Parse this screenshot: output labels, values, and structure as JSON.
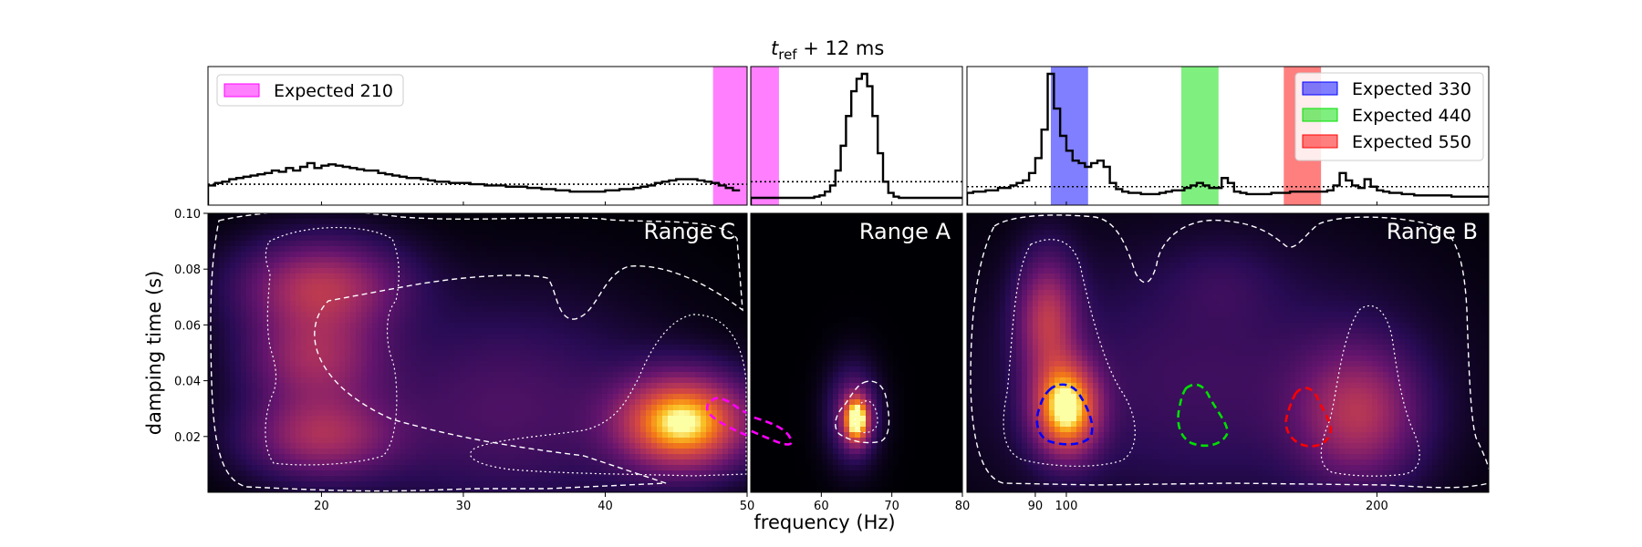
{
  "figure": {
    "title_main": "t",
    "title_sub": "ref",
    "title_rest": " + 12 ms",
    "xlabel": "frequency (Hz)",
    "ylabel": "damping time (s)"
  },
  "colors": {
    "magenta": "#ff00ff",
    "blue": "#0000ff",
    "green": "#00e000",
    "red": "#ff0000"
  },
  "chart_data": [
    {
      "panel": "Range C",
      "type": "histogram+density",
      "label": "Range C",
      "x_range": [
        12,
        50
      ],
      "y_range": [
        0.0,
        0.1
      ],
      "x_ticks": [
        20,
        30,
        40,
        50
      ],
      "x_tick_labels": [
        "20",
        "30",
        "40",
        "50"
      ],
      "y_ticks": [
        0.02,
        0.04,
        0.06,
        0.08,
        0.1
      ],
      "y_tick_labels": [
        "0.02",
        "0.04",
        "0.06",
        "0.08",
        "0.10"
      ],
      "legend": [
        {
          "label": "Expected 210",
          "color": "magenta"
        }
      ],
      "expected_bands": [
        {
          "name": "Expected 210",
          "x0": 47.6,
          "x1": 50,
          "color": "magenta"
        }
      ],
      "histogram": {
        "bin_start": 12,
        "bin_width": 0.5,
        "prior_level": 0.11,
        "max": 1.0,
        "counts": [
          0.1,
          0.12,
          0.13,
          0.15,
          0.16,
          0.17,
          0.18,
          0.19,
          0.2,
          0.22,
          0.21,
          0.24,
          0.22,
          0.25,
          0.28,
          0.24,
          0.26,
          0.27,
          0.26,
          0.25,
          0.24,
          0.23,
          0.22,
          0.22,
          0.2,
          0.19,
          0.18,
          0.17,
          0.16,
          0.16,
          0.15,
          0.14,
          0.13,
          0.13,
          0.12,
          0.12,
          0.12,
          0.11,
          0.11,
          0.1,
          0.1,
          0.1,
          0.09,
          0.09,
          0.09,
          0.08,
          0.08,
          0.07,
          0.07,
          0.06,
          0.06,
          0.05,
          0.05,
          0.05,
          0.05,
          0.05,
          0.06,
          0.06,
          0.07,
          0.07,
          0.08,
          0.09,
          0.1,
          0.12,
          0.13,
          0.14,
          0.15,
          0.15,
          0.15,
          0.14,
          0.13,
          0.12,
          0.1,
          0.08,
          0.06
        ]
      },
      "density_blobs": [
        {
          "x": 45.5,
          "y": 0.025,
          "sx": 3.0,
          "sy": 0.011,
          "weight": 1.0
        },
        {
          "x": 20.0,
          "y": 0.074,
          "sx": 3.8,
          "sy": 0.011,
          "weight": 0.5
        },
        {
          "x": 19.5,
          "y": 0.048,
          "sx": 3.2,
          "sy": 0.012,
          "weight": 0.42
        },
        {
          "x": 20.0,
          "y": 0.02,
          "sx": 3.5,
          "sy": 0.01,
          "weight": 0.44
        },
        {
          "x": 33.0,
          "y": 0.03,
          "sx": 7.0,
          "sy": 0.025,
          "weight": 0.2
        }
      ],
      "expected_contour": {
        "color": "magenta",
        "center_x": 48.5,
        "center_y": 0.025,
        "extends_into": "Range A"
      }
    },
    {
      "panel": "Range A",
      "type": "histogram+density",
      "label": "Range A",
      "x_range": [
        50,
        80
      ],
      "y_range": [
        0.0,
        0.1
      ],
      "x_ticks": [
        60,
        70,
        80
      ],
      "x_tick_labels": [
        "60",
        "70",
        "80"
      ],
      "expected_bands": [
        {
          "name": "Expected 210",
          "x0": 50,
          "x1": 54,
          "color": "magenta"
        }
      ],
      "histogram": {
        "bin_start": 50,
        "bin_width": 0.75,
        "prior_level": 0.13,
        "max": 1.0,
        "counts": [
          0,
          0,
          0,
          0,
          0,
          0,
          0,
          0,
          0,
          0,
          0,
          0,
          0.01,
          0.02,
          0.05,
          0.1,
          0.22,
          0.42,
          0.66,
          0.86,
          0.96,
          1.0,
          0.9,
          0.66,
          0.36,
          0.13,
          0.04,
          0.01,
          0,
          0,
          0,
          0,
          0,
          0,
          0,
          0,
          0,
          0,
          0,
          0
        ]
      },
      "density_blobs": [
        {
          "x": 65.0,
          "y": 0.026,
          "sx": 1.2,
          "sy": 0.0055,
          "weight": 1.0
        },
        {
          "x": 64.5,
          "y": 0.028,
          "sx": 2.3,
          "sy": 0.011,
          "weight": 0.3
        }
      ]
    },
    {
      "panel": "Range B",
      "type": "histogram+density",
      "label": "Range B",
      "x_range": [
        68,
        236
      ],
      "y_range": [
        0.0,
        0.1
      ],
      "x_ticks": [
        90,
        100,
        200
      ],
      "x_tick_labels": [
        "90",
        "100",
        "200"
      ],
      "legend": [
        {
          "label": "Expected 330",
          "color": "blue"
        },
        {
          "label": "Expected 440",
          "color": "green"
        },
        {
          "label": "Expected 550",
          "color": "red"
        }
      ],
      "expected_bands": [
        {
          "name": "Expected 330",
          "x0": 95,
          "x1": 107,
          "color": "blue"
        },
        {
          "name": "Expected 440",
          "x0": 137,
          "x1": 149,
          "color": "green"
        },
        {
          "name": "Expected 550",
          "x0": 170,
          "x1": 182,
          "color": "red"
        }
      ],
      "histogram": {
        "bin_start": 68,
        "bin_width": 2,
        "prior_level": 0.09,
        "max": 1.0,
        "counts": [
          0.04,
          0.05,
          0.05,
          0.06,
          0.06,
          0.08,
          0.08,
          0.1,
          0.12,
          0.14,
          0.2,
          0.32,
          0.55,
          1.0,
          0.72,
          0.5,
          0.38,
          0.3,
          0.28,
          0.25,
          0.28,
          0.3,
          0.25,
          0.12,
          0.07,
          0.05,
          0.04,
          0.04,
          0.03,
          0.03,
          0.03,
          0.04,
          0.05,
          0.06,
          0.06,
          0.08,
          0.1,
          0.12,
          0.1,
          0.08,
          0.08,
          0.16,
          0.12,
          0.05,
          0.04,
          0.03,
          0.03,
          0.03,
          0.03,
          0.04,
          0.04,
          0.04,
          0.05,
          0.05,
          0.05,
          0.05,
          0.05,
          0.05,
          0.06,
          0.1,
          0.2,
          0.14,
          0.1,
          0.08,
          0.15,
          0.09,
          0.06,
          0.05,
          0.04,
          0.04,
          0.03,
          0.03,
          0.02,
          0.02,
          0.02,
          0.02,
          0.02,
          0.02,
          0.01,
          0.01,
          0.01,
          0.01,
          0.01,
          0.01
        ]
      },
      "density_blobs": [
        {
          "x": 100,
          "y": 0.03,
          "sx": 7.0,
          "sy": 0.011,
          "weight": 1.0
        },
        {
          "x": 94,
          "y": 0.062,
          "sx": 6.5,
          "sy": 0.015,
          "weight": 0.5
        },
        {
          "x": 194,
          "y": 0.028,
          "sx": 13,
          "sy": 0.016,
          "weight": 0.45
        },
        {
          "x": 145,
          "y": 0.04,
          "sx": 45,
          "sy": 0.03,
          "weight": 0.16
        },
        {
          "x": 150,
          "y": 0.075,
          "sx": 12,
          "sy": 0.01,
          "weight": 0.07
        }
      ],
      "expected_contours": [
        {
          "name": "Expected 330",
          "color": "blue",
          "center_x": 100,
          "center_y": 0.027
        },
        {
          "name": "Expected 440",
          "color": "green",
          "center_x": 143,
          "center_y": 0.028
        },
        {
          "name": "Expected 550",
          "color": "red",
          "center_x": 176,
          "center_y": 0.027
        }
      ]
    }
  ]
}
